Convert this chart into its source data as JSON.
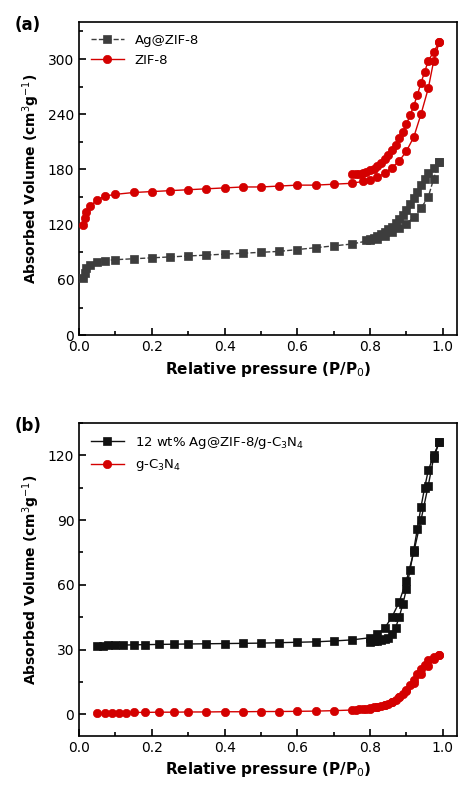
{
  "panel_a": {
    "ag_zif8_adsorption_x": [
      0.01,
      0.015,
      0.02,
      0.03,
      0.05,
      0.07,
      0.1,
      0.15,
      0.2,
      0.25,
      0.3,
      0.35,
      0.4,
      0.45,
      0.5,
      0.55,
      0.6,
      0.65,
      0.7,
      0.75,
      0.8,
      0.82,
      0.84,
      0.86,
      0.88,
      0.9,
      0.92,
      0.94,
      0.96,
      0.975,
      0.99
    ],
    "ag_zif8_adsorption_y": [
      62,
      68,
      73,
      76,
      79,
      81,
      82,
      83,
      84,
      85,
      86,
      87,
      88,
      89,
      90,
      91,
      93,
      95,
      97,
      99,
      103,
      105,
      108,
      112,
      116,
      121,
      128,
      138,
      150,
      170,
      188
    ],
    "ag_zif8_desorption_x": [
      0.99,
      0.975,
      0.96,
      0.95,
      0.94,
      0.93,
      0.92,
      0.91,
      0.9,
      0.89,
      0.88,
      0.87,
      0.86,
      0.85,
      0.84,
      0.83,
      0.82,
      0.81,
      0.8,
      0.79
    ],
    "ag_zif8_desorption_y": [
      188,
      182,
      176,
      170,
      163,
      156,
      149,
      142,
      136,
      131,
      126,
      122,
      118,
      115,
      112,
      110,
      108,
      106,
      104,
      103
    ],
    "zif8_adsorption_x": [
      0.01,
      0.015,
      0.02,
      0.03,
      0.05,
      0.07,
      0.1,
      0.15,
      0.2,
      0.25,
      0.3,
      0.35,
      0.4,
      0.45,
      0.5,
      0.55,
      0.6,
      0.65,
      0.7,
      0.75,
      0.78,
      0.8,
      0.82,
      0.84,
      0.86,
      0.88,
      0.9,
      0.92,
      0.94,
      0.96,
      0.975,
      0.99
    ],
    "zif8_adsorption_y": [
      120,
      127,
      134,
      140,
      147,
      151,
      153,
      155,
      156,
      157,
      158,
      159,
      160,
      161,
      161,
      162,
      163,
      163,
      164,
      165,
      167,
      169,
      172,
      176,
      182,
      189,
      200,
      215,
      240,
      268,
      298,
      318
    ],
    "zif8_desorption_x": [
      0.99,
      0.975,
      0.96,
      0.95,
      0.94,
      0.93,
      0.92,
      0.91,
      0.9,
      0.89,
      0.88,
      0.87,
      0.86,
      0.85,
      0.84,
      0.83,
      0.82,
      0.81,
      0.8,
      0.79,
      0.78,
      0.77,
      0.76,
      0.75
    ],
    "zif8_desorption_y": [
      318,
      308,
      298,
      286,
      274,
      261,
      249,
      239,
      229,
      221,
      214,
      207,
      201,
      196,
      191,
      187,
      184,
      181,
      179,
      177,
      176,
      175,
      175,
      175
    ],
    "ag_zif8_color": "#3d3d3d",
    "zif8_color": "#d40000",
    "ag_zif8_label": "Ag@ZIF-8",
    "zif8_label": "ZIF-8",
    "ylabel": "Absorbed Volume (cm$^3$g$^{-1}$)",
    "xlabel": "Relative pressure (P/P$_0$)",
    "ylim": [
      0,
      340
    ],
    "xlim": [
      0.0,
      1.04
    ],
    "yticks": [
      0,
      60,
      120,
      180,
      240,
      300
    ],
    "xticks": [
      0.0,
      0.2,
      0.4,
      0.6,
      0.8,
      1.0
    ],
    "panel_label": "(a)"
  },
  "panel_b": {
    "composite_adsorption_x": [
      0.05,
      0.065,
      0.08,
      0.1,
      0.12,
      0.15,
      0.18,
      0.22,
      0.26,
      0.3,
      0.35,
      0.4,
      0.45,
      0.5,
      0.55,
      0.6,
      0.65,
      0.7,
      0.75,
      0.8,
      0.82,
      0.84,
      0.86,
      0.88,
      0.9,
      0.92,
      0.94,
      0.96,
      0.975,
      0.99
    ],
    "composite_adsorption_y": [
      31.5,
      31.8,
      32.0,
      32.1,
      32.1,
      32.2,
      32.3,
      32.4,
      32.5,
      32.6,
      32.7,
      32.8,
      32.9,
      33.0,
      33.2,
      33.4,
      33.6,
      34.0,
      34.5,
      35.5,
      37.0,
      40.0,
      45.0,
      52.0,
      62.0,
      75.0,
      90.0,
      106.0,
      119.0,
      126.0
    ],
    "composite_desorption_x": [
      0.99,
      0.975,
      0.96,
      0.95,
      0.94,
      0.93,
      0.92,
      0.91,
      0.9,
      0.89,
      0.88,
      0.87,
      0.86,
      0.85,
      0.84,
      0.83,
      0.82,
      0.81,
      0.8
    ],
    "composite_desorption_y": [
      126.0,
      120.0,
      113.0,
      105.0,
      96.0,
      86.0,
      76.0,
      67.0,
      58.0,
      51.0,
      45.0,
      40.0,
      37.0,
      35.5,
      34.8,
      34.3,
      34.0,
      33.8,
      33.6
    ],
    "gcn4_adsorption_x": [
      0.05,
      0.07,
      0.09,
      0.11,
      0.13,
      0.15,
      0.18,
      0.22,
      0.26,
      0.3,
      0.35,
      0.4,
      0.45,
      0.5,
      0.55,
      0.6,
      0.65,
      0.7,
      0.75,
      0.8,
      0.82,
      0.84,
      0.86,
      0.88,
      0.9,
      0.92,
      0.94,
      0.96,
      0.975,
      0.99
    ],
    "gcn4_adsorption_y": [
      0.5,
      0.6,
      0.7,
      0.8,
      0.8,
      0.9,
      0.9,
      1.0,
      1.0,
      1.1,
      1.1,
      1.2,
      1.2,
      1.3,
      1.3,
      1.4,
      1.5,
      1.7,
      2.0,
      2.5,
      3.2,
      4.2,
      5.8,
      8.0,
      11.0,
      14.5,
      18.5,
      22.5,
      25.5,
      27.5
    ],
    "gcn4_desorption_x": [
      0.99,
      0.975,
      0.96,
      0.95,
      0.94,
      0.93,
      0.92,
      0.91,
      0.9,
      0.89,
      0.88,
      0.87,
      0.86,
      0.85,
      0.84,
      0.83,
      0.82,
      0.81,
      0.8,
      0.79,
      0.78,
      0.77,
      0.76
    ],
    "gcn4_desorption_y": [
      27.5,
      26.5,
      25.0,
      23.0,
      21.0,
      18.5,
      16.0,
      13.5,
      11.5,
      9.5,
      8.0,
      6.8,
      5.8,
      5.0,
      4.4,
      3.9,
      3.5,
      3.2,
      2.9,
      2.7,
      2.5,
      2.3,
      2.2
    ],
    "composite_color": "#111111",
    "gcn4_color": "#d40000",
    "composite_label": "12 wt% Ag@ZIF-8/g-C$_3$N$_4$",
    "gcn4_label": "g-C$_3$N$_4$",
    "ylabel": "Absorbed Volume (cm$^3$g$^{-1}$)",
    "xlabel": "Relative pressure (P/P$_0$)",
    "ylim": [
      -10,
      135
    ],
    "xlim": [
      0.0,
      1.04
    ],
    "yticks": [
      0,
      30,
      60,
      90,
      120
    ],
    "xticks": [
      0.0,
      0.2,
      0.4,
      0.6,
      0.8,
      1.0
    ],
    "panel_label": "(b)"
  },
  "background_color": "#ffffff",
  "figure_width": 4.74,
  "figure_height": 7.96
}
